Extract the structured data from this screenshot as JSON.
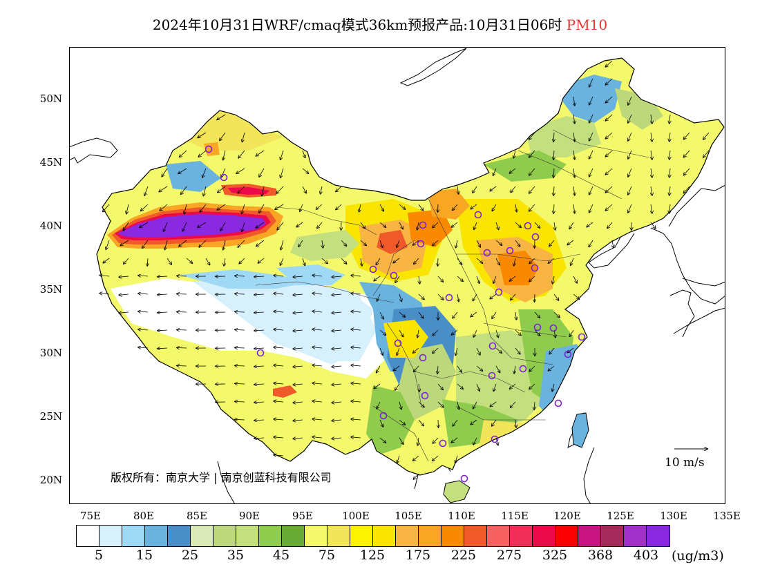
{
  "title": {
    "main": "2024年10月31日WRF/cmaq模式36km预报产品:10月31日06时",
    "pollutant": "PM10"
  },
  "axes": {
    "lat_ticks": [
      "50N",
      "45N",
      "40N",
      "35N",
      "30N",
      "25N",
      "20N"
    ],
    "lon_ticks": [
      "75E",
      "80E",
      "85E",
      "90E",
      "95E",
      "100E",
      "105E",
      "110E",
      "115E",
      "120E",
      "125E",
      "130E",
      "135E"
    ]
  },
  "legend": {
    "colors": [
      "#ffffff",
      "#d6f0fc",
      "#9fd9f5",
      "#6bb3df",
      "#4a8ec7",
      "#d9eab8",
      "#bcd87a",
      "#c4e07e",
      "#8fcb4c",
      "#6aab38",
      "#f3f96a",
      "#f3e55a",
      "#fbf300",
      "#f9e500",
      "#f9b544",
      "#f9a624",
      "#f98a00",
      "#f05a2a",
      "#f96060",
      "#f0305a",
      "#ec0a4a",
      "#fa0000",
      "#c81480",
      "#a42a5a",
      "#a030c8",
      "#8a2ae0"
    ],
    "labels": [
      "5",
      "15",
      "25",
      "35",
      "45",
      "75",
      "125",
      "175",
      "225",
      "275",
      "325",
      "368",
      "403"
    ],
    "unit": "(ug/m3)"
  },
  "copyright": "版权所有：南京大学 | 南京创蓝科技有限公司",
  "wind_reference": "10 m/s",
  "colors": {
    "title_highlight": "#e0342f"
  }
}
